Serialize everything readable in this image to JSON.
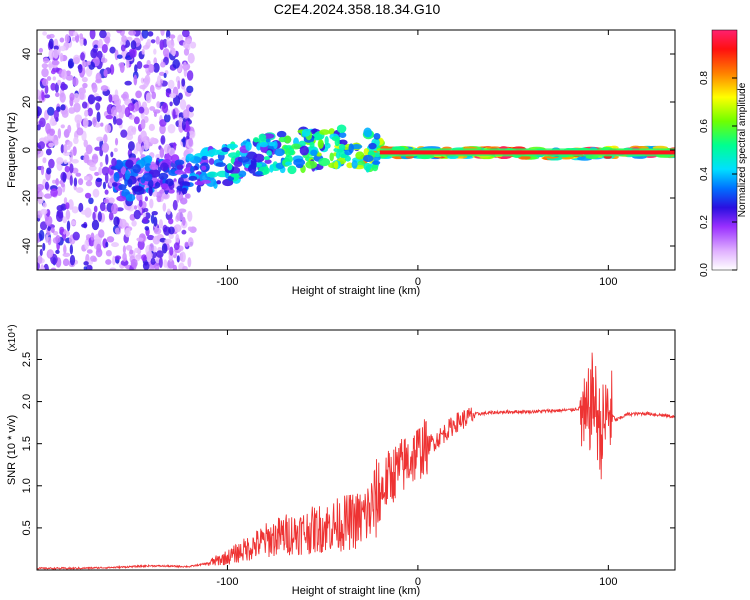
{
  "title": "C2E4.2024.358.18.34.G10",
  "chart_data": [
    {
      "type": "heatmap",
      "name": "spectrogram",
      "xlabel": "Height of straight line (km)",
      "ylabel": "Frequency (Hz)",
      "xlim": [
        -200,
        135
      ],
      "ylim": [
        -50,
        50
      ],
      "x_ticks": [
        -100,
        0,
        100
      ],
      "y_ticks": [
        -40,
        -20,
        0,
        20,
        40
      ],
      "colorbar": {
        "label": "Normalized spectral amplitude",
        "range": [
          0,
          1
        ],
        "ticks": [
          "0.0",
          "0.2",
          "0.4",
          "0.6",
          "0.8"
        ],
        "colors": [
          "#ffffff",
          "#b060ff",
          "#3b10d0",
          "#0060ff",
          "#00e0ff",
          "#00ff80",
          "#60ff00",
          "#ffff00",
          "#ff8000",
          "#ff0000",
          "#ff2060"
        ]
      },
      "ridge": [
        {
          "x": -150,
          "freq": -12,
          "amp": 0.35
        },
        {
          "x": -120,
          "freq": -10,
          "amp": 0.4
        },
        {
          "x": -100,
          "freq": -6,
          "amp": 0.5
        },
        {
          "x": -80,
          "freq": -2,
          "amp": 0.55
        },
        {
          "x": -60,
          "freq": 0,
          "amp": 0.6
        },
        {
          "x": -40,
          "freq": 1,
          "amp": 0.7
        },
        {
          "x": -20,
          "freq": -1,
          "amp": 0.85
        },
        {
          "x": 0,
          "freq": -1,
          "amp": 0.95
        },
        {
          "x": 50,
          "freq": -1,
          "amp": 1.0
        },
        {
          "x": 80,
          "freq": -2,
          "amp": 0.9
        },
        {
          "x": 100,
          "freq": -1,
          "amp": 0.95
        },
        {
          "x": 135,
          "freq": -1,
          "amp": 1.0
        }
      ]
    },
    {
      "type": "line",
      "name": "snr",
      "xlabel": "Height of straight line (km)",
      "ylabel": "SNR (10 * v/v)",
      "scale_label": "(x10⁴)",
      "xlim": [
        -200,
        135
      ],
      "ylim": [
        0,
        2.85
      ],
      "x_ticks": [
        -100,
        0,
        100
      ],
      "y_ticks": [
        0.5,
        1.0,
        1.5,
        2.0,
        2.5
      ],
      "y_tick_labels": [
        "0.5",
        "1.0",
        "1.5",
        "2.0",
        "2.5"
      ],
      "color": "#ee3333",
      "series": [
        {
          "name": "SNR",
          "x": [
            -200,
            -180,
            -160,
            -140,
            -120,
            -110,
            -100,
            -90,
            -80,
            -70,
            -60,
            -50,
            -40,
            -30,
            -25,
            -20,
            -15,
            -10,
            -5,
            0,
            10,
            20,
            30,
            40,
            50,
            60,
            70,
            80,
            85,
            88,
            92,
            96,
            100,
            104,
            110,
            120,
            135
          ],
          "y": [
            0.02,
            0.02,
            0.03,
            0.05,
            0.04,
            0.08,
            0.15,
            0.25,
            0.35,
            0.42,
            0.45,
            0.5,
            0.55,
            0.6,
            0.7,
            0.9,
            1.1,
            1.2,
            1.3,
            1.4,
            1.55,
            1.75,
            1.85,
            1.87,
            1.88,
            1.88,
            1.89,
            1.9,
            1.92,
            1.7,
            2.1,
            1.6,
            1.9,
            1.78,
            1.85,
            1.86,
            1.82
          ]
        }
      ]
    }
  ]
}
